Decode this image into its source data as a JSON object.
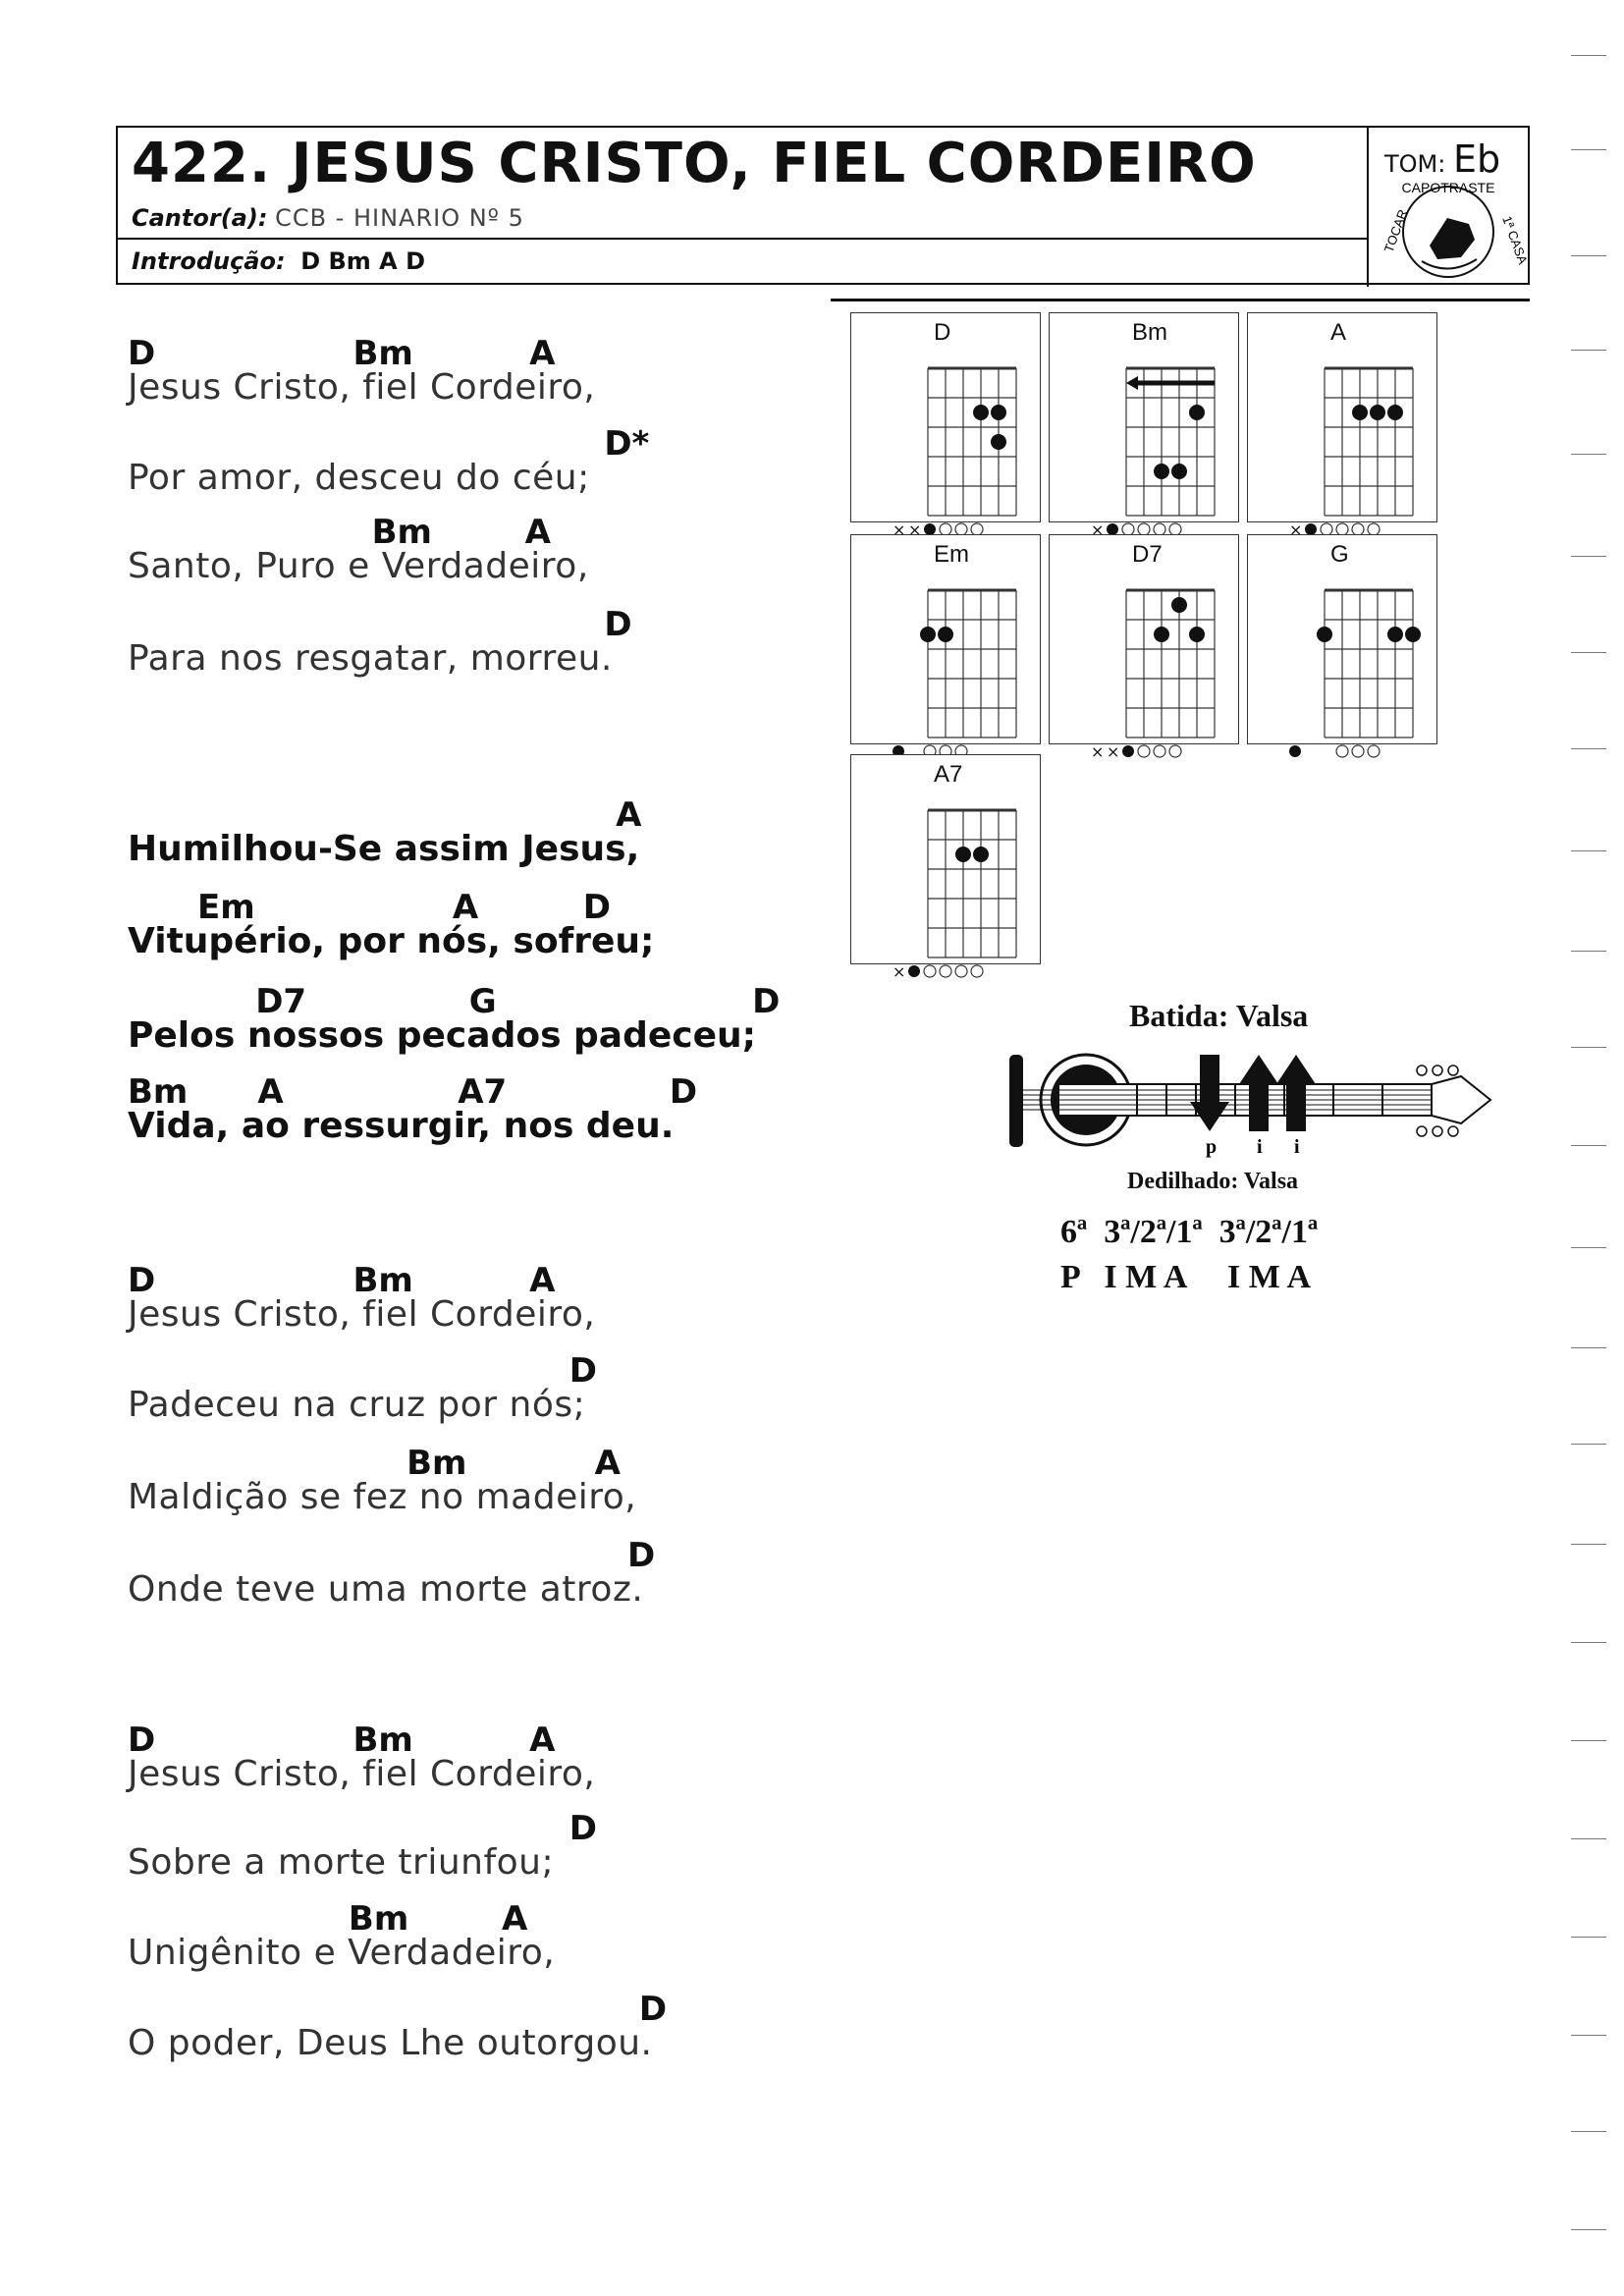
{
  "header": {
    "title": "422. JESUS CRISTO, FIEL CORDEIRO",
    "singer_label": "Cantor(a):",
    "singer_value": "CCB - HINARIO Nº 5",
    "intro_label": "Introdução:",
    "intro_value": "D Bm A D",
    "tom_label": "TOM:",
    "tom_value": "Eb",
    "seal_text": "TOCAR CAPOTRASTE 1ª CASA"
  },
  "lyrics": [
    {
      "type": "chord",
      "text": "D                 Bm          A"
    },
    {
      "type": "verse",
      "text": "Jesus Cristo, fiel Cordeiro,"
    },
    {
      "type": "chord",
      "text": "                                         D*"
    },
    {
      "type": "verse",
      "text": "Por amor, desceu do céu;"
    },
    {
      "type": "chord",
      "text": "                     Bm        A"
    },
    {
      "type": "verse",
      "text": "Santo, Puro e Verdadeiro,"
    },
    {
      "type": "chord",
      "text": "                                         D"
    },
    {
      "type": "verse",
      "text": "Para nos resgatar, morreu."
    },
    {
      "type": "chord",
      "text": "                                          A"
    },
    {
      "type": "chorus",
      "text": "Humilhou-Se assim Jesus,"
    },
    {
      "type": "chord",
      "text": "      Em                 A         D"
    },
    {
      "type": "chorus",
      "text": "Vitupério, por nós, sofreu;"
    },
    {
      "type": "chord",
      "text": "           D7              G                      D"
    },
    {
      "type": "chorus",
      "text": "Pelos nossos pecados padeceu;"
    },
    {
      "type": "chord",
      "text": "Bm      A               A7              D"
    },
    {
      "type": "chorus",
      "text": "Vida, ao ressurgir, nos deu."
    },
    {
      "type": "chord",
      "text": "D                 Bm          A"
    },
    {
      "type": "verse",
      "text": "Jesus Cristo, fiel Cordeiro,"
    },
    {
      "type": "chord",
      "text": "                                      D"
    },
    {
      "type": "verse",
      "text": "Padeceu na cruz por nós;"
    },
    {
      "type": "chord",
      "text": "                        Bm           A"
    },
    {
      "type": "verse",
      "text": "Maldição se fez no madeiro,"
    },
    {
      "type": "chord",
      "text": "                                           D"
    },
    {
      "type": "verse",
      "text": "Onde teve uma morte atroz."
    },
    {
      "type": "chord",
      "text": "D                 Bm          A"
    },
    {
      "type": "verse",
      "text": "Jesus Cristo, fiel Cordeiro,"
    },
    {
      "type": "chord",
      "text": "                                      D"
    },
    {
      "type": "verse",
      "text": "Sobre a morte triunfou;"
    },
    {
      "type": "chord",
      "text": "                   Bm        A"
    },
    {
      "type": "verse",
      "text": "Unigênito e Verdadeiro,"
    },
    {
      "type": "chord",
      "text": "                                            D"
    },
    {
      "type": "verse",
      "text": "O poder, Deus Lhe outorgou."
    }
  ],
  "chord_diagrams": [
    {
      "name": "D",
      "dots": [
        [
          3,
          1
        ],
        [
          4,
          1
        ],
        [
          4,
          2
        ]
      ],
      "barre": null,
      "markers": "xxoooo",
      "root": 2
    },
    {
      "name": "Bm",
      "dots": [
        [
          4,
          1
        ],
        [
          2,
          3
        ],
        [
          3,
          3
        ]
      ],
      "barre": 1,
      "markers": "xooooo",
      "root": 1
    },
    {
      "name": "A",
      "dots": [
        [
          2,
          1
        ],
        [
          3,
          1
        ],
        [
          4,
          1
        ]
      ],
      "barre": null,
      "markers": "xooooo",
      "root": 1
    },
    {
      "name": "Em",
      "dots": [
        [
          0,
          1
        ],
        [
          1,
          1
        ]
      ],
      "barre": null,
      "markers": "o ooo",
      "root": 0
    },
    {
      "name": "D7",
      "dots": [
        [
          3,
          0
        ],
        [
          2,
          1
        ],
        [
          4,
          1
        ]
      ],
      "barre": null,
      "markers": "xxoooo",
      "root": 2
    },
    {
      "name": "G",
      "dots": [
        [
          0,
          1
        ],
        [
          4,
          1
        ],
        [
          5,
          1
        ]
      ],
      "barre": null,
      "markers": "o  ooo",
      "root": 0
    },
    {
      "name": "A7",
      "dots": [
        [
          2,
          1
        ],
        [
          3,
          1
        ]
      ],
      "barre": null,
      "markers": "xooooo",
      "root": 1
    }
  ],
  "strum": {
    "title": "Batida: Valsa",
    "fingers": [
      "p",
      "i",
      "i"
    ],
    "pick_title": "Dedilhado: Valsa",
    "pattern_strings": "6ª  3ª/2ª/1ª  3ª/2ª/1ª",
    "pattern_fingers": "P   I M A     I M A"
  }
}
